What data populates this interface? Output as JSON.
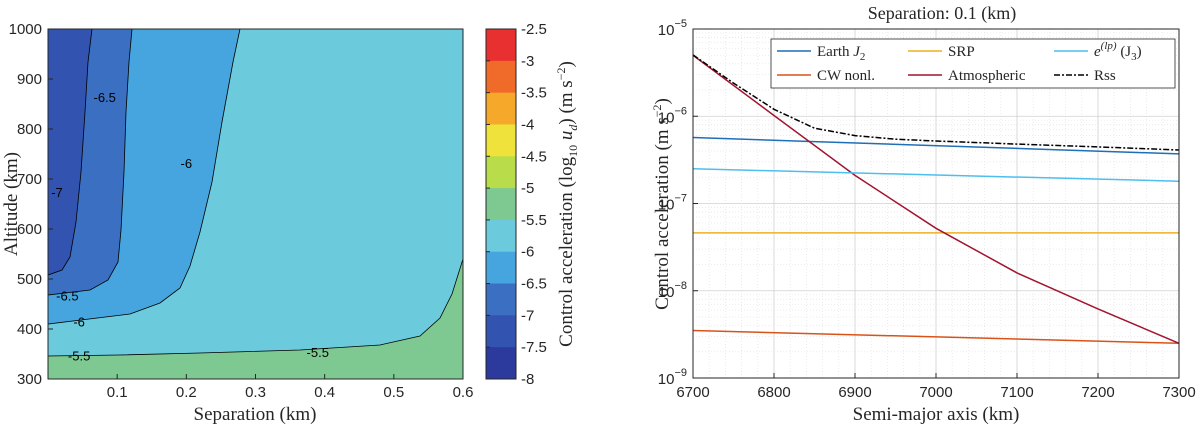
{
  "chart_data": [
    {
      "type": "contour",
      "xlabel": "Separation (km)",
      "ylabel": "Altitude (km)",
      "xlim": [
        0,
        0.6
      ],
      "ylim": [
        300,
        1000
      ],
      "xticks": [
        "0.1",
        "0.2",
        "0.3",
        "0.4",
        "0.5",
        "0.6"
      ],
      "yticks": [
        "300",
        "400",
        "500",
        "600",
        "700",
        "800",
        "900",
        "1000"
      ],
      "regions": [
        {
          "level": "-5.5 to -5",
          "color": "#7ec892"
        },
        {
          "level": "-6 to -5.5",
          "color": "#6bcbdc"
        },
        {
          "level": "-6.5 to -6",
          "color": "#46a4de"
        },
        {
          "level": "-7 to -6.5",
          "color": "#3b6fc2"
        },
        {
          "level": "-7.5 to -7",
          "color": "#3253b0"
        }
      ],
      "contour_labels": [
        {
          "text": "-5.5",
          "x": 0.045,
          "y": 345
        },
        {
          "text": "-5.5",
          "x": 0.39,
          "y": 352
        },
        {
          "text": "-6",
          "x": 0.045,
          "y": 413
        },
        {
          "text": "-6",
          "x": 0.2,
          "y": 730
        },
        {
          "text": "-6.5",
          "x": 0.028,
          "y": 465
        },
        {
          "text": "-6.5",
          "x": 0.082,
          "y": 862
        },
        {
          "text": "-7",
          "x": 0.013,
          "y": 672
        }
      ],
      "colorbar": {
        "label": "Control acceleration (log₁₀ u_d) (m s⁻²)",
        "label_main": "Control acceleration (log",
        "label_sub": "10",
        "label_var": "u",
        "label_var_sub": "d",
        "label_unit": ") (m s",
        "label_exp": "−2",
        "label_close": ")",
        "ticks": [
          "-2.5",
          "-3",
          "-3.5",
          "-4",
          "-4.5",
          "-5",
          "-5.5",
          "-6",
          "-6.5",
          "-7",
          "-7.5",
          "-8"
        ],
        "colors": [
          "#e83030",
          "#f06a2a",
          "#f5a82a",
          "#efe23a",
          "#b8dc4a",
          "#7ec892",
          "#6bcbdc",
          "#46a4de",
          "#3b6fc2",
          "#3253b0",
          "#2b3a9c"
        ]
      }
    },
    {
      "type": "line",
      "title": "Separation: 0.1 (km)",
      "xlabel": "Semi-major axis (km)",
      "ylabel": "Control acceleration (m s⁻²)",
      "ylabel_main": "Control acceleration (m s",
      "ylabel_exp": "−2",
      "ylabel_close": ")",
      "yscale": "log",
      "xlim": [
        6700,
        7300
      ],
      "ylim_exp": [
        -9,
        -5
      ],
      "xticks": [
        "6700",
        "6800",
        "6900",
        "7000",
        "7100",
        "7200",
        "7300"
      ],
      "yticks": [
        {
          "base": "10",
          "exp": "−5"
        },
        {
          "base": "10",
          "exp": "−6"
        },
        {
          "base": "10",
          "exp": "−7"
        },
        {
          "base": "10",
          "exp": "−8"
        },
        {
          "base": "10",
          "exp": "−9"
        }
      ],
      "series": [
        {
          "name": "Earth J2",
          "label": "Earth ",
          "label_math": "J",
          "label_sub": "2",
          "color": "#1f6fb8",
          "dash": "",
          "x": [
            6700,
            7300
          ],
          "y": [
            5.7e-07,
            3.7e-07
          ]
        },
        {
          "name": "CW nonl.",
          "label": "CW nonl.",
          "color": "#d95319",
          "dash": "",
          "x": [
            6700,
            7300
          ],
          "y": [
            3.5e-09,
            2.5e-09
          ]
        },
        {
          "name": "SRP",
          "label": "SRP",
          "color": "#edb120",
          "dash": "",
          "x": [
            6700,
            7300
          ],
          "y": [
            4.6e-08,
            4.6e-08
          ]
        },
        {
          "name": "Atmospheric",
          "label": "Atmospheric",
          "color": "#a2142f",
          "dash": "",
          "x": [
            6700,
            6800,
            6900,
            7000,
            7100,
            7200,
            7300
          ],
          "y": [
            5e-06,
            1.02e-06,
            2.1e-07,
            5.2e-08,
            1.6e-08,
            6.2e-09,
            2.5e-09
          ]
        },
        {
          "name": "e^(lp) (J3)",
          "label": "e",
          "label_sup": "(lp)",
          "label_tail": " (J",
          "label_tail_sub": "3",
          "label_tail_close": ")",
          "color": "#4dbeee",
          "dash": "",
          "x": [
            6700,
            7300
          ],
          "y": [
            2.5e-07,
            1.8e-07
          ]
        },
        {
          "name": "Rss",
          "label": "Rss",
          "color": "#000000",
          "dash": "6 2 2 2",
          "x": [
            6700,
            6750,
            6800,
            6850,
            6900,
            6950,
            7000,
            7100,
            7200,
            7300
          ],
          "y": [
            5.05e-06,
            2.4e-06,
            1.2e-06,
            7.3e-07,
            6e-07,
            5.45e-07,
            5.2e-07,
            4.8e-07,
            4.45e-07,
            4.1e-07
          ]
        }
      ]
    }
  ]
}
